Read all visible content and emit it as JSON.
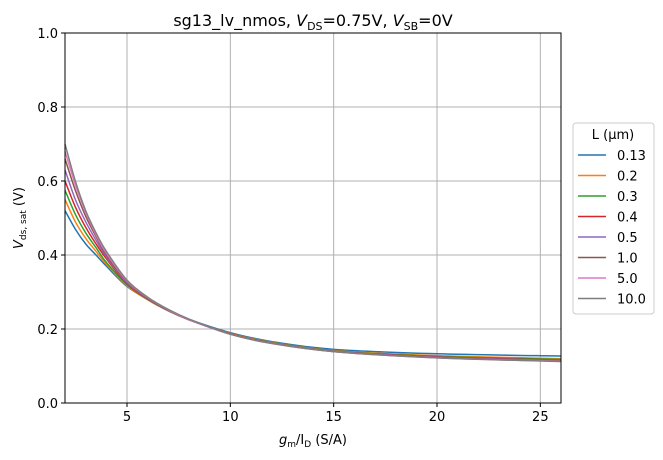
{
  "chart_data": {
    "type": "line",
    "title_parts": {
      "base": "sg13_lv_nmos, ",
      "v1": "V",
      "v1sub": "DS",
      "v1val": "=0.75V, ",
      "v2": "V",
      "v2sub": "SB",
      "v2val": "=0V"
    },
    "xlabel_parts": {
      "g": "g",
      "gsub": "m",
      "slash": "/I",
      "isub": "D",
      "unit": " (S/A)"
    },
    "ylabel_parts": {
      "v": "V",
      "vsub": "ds, sat",
      "unit": " (V)"
    },
    "xlim": [
      2,
      26
    ],
    "ylim": [
      0,
      1
    ],
    "xticks": [
      5,
      10,
      15,
      20,
      25
    ],
    "yticks": [
      0.0,
      0.2,
      0.4,
      0.6,
      0.8,
      1.0
    ],
    "ytick_labels": [
      "0.0",
      "0.2",
      "0.4",
      "0.6",
      "0.8",
      "1.0"
    ],
    "grid": true,
    "legend": {
      "title": "L (µm)",
      "placement": "right-outside"
    },
    "x": [
      2,
      2.5,
      3,
      3.5,
      4,
      5,
      6,
      7,
      8,
      10,
      12,
      15,
      20,
      26
    ],
    "series": [
      {
        "name": "0.13",
        "color": "#1f77b4",
        "values": [
          0.52,
          0.47,
          0.43,
          0.4,
          0.37,
          0.315,
          0.28,
          0.25,
          0.226,
          0.19,
          0.166,
          0.145,
          0.133,
          0.127
        ]
      },
      {
        "name": "0.2",
        "color": "#ff7f0e",
        "values": [
          0.55,
          0.49,
          0.445,
          0.41,
          0.375,
          0.317,
          0.279,
          0.249,
          0.225,
          0.188,
          0.164,
          0.142,
          0.128,
          0.12
        ]
      },
      {
        "name": "0.3",
        "color": "#2ca02c",
        "values": [
          0.575,
          0.51,
          0.46,
          0.42,
          0.38,
          0.32,
          0.28,
          0.249,
          0.225,
          0.187,
          0.163,
          0.141,
          0.126,
          0.118
        ]
      },
      {
        "name": "0.4",
        "color": "#d62728",
        "values": [
          0.6,
          0.53,
          0.475,
          0.43,
          0.39,
          0.322,
          0.281,
          0.25,
          0.225,
          0.187,
          0.162,
          0.14,
          0.125,
          0.116
        ]
      },
      {
        "name": "0.5",
        "color": "#9467bd",
        "values": [
          0.63,
          0.55,
          0.49,
          0.44,
          0.395,
          0.325,
          0.282,
          0.25,
          0.225,
          0.186,
          0.162,
          0.14,
          0.124,
          0.115
        ]
      },
      {
        "name": "1.0",
        "color": "#8c564b",
        "values": [
          0.66,
          0.575,
          0.505,
          0.45,
          0.4,
          0.328,
          0.283,
          0.251,
          0.226,
          0.186,
          0.161,
          0.139,
          0.123,
          0.114
        ]
      },
      {
        "name": "5.0",
        "color": "#e377c2",
        "values": [
          0.68,
          0.59,
          0.515,
          0.455,
          0.405,
          0.33,
          0.285,
          0.252,
          0.226,
          0.186,
          0.161,
          0.139,
          0.122,
          0.113
        ]
      },
      {
        "name": "10.0",
        "color": "#7f7f7f",
        "values": [
          0.7,
          0.6,
          0.52,
          0.46,
          0.41,
          0.332,
          0.286,
          0.253,
          0.227,
          0.186,
          0.161,
          0.139,
          0.122,
          0.112
        ]
      }
    ]
  }
}
